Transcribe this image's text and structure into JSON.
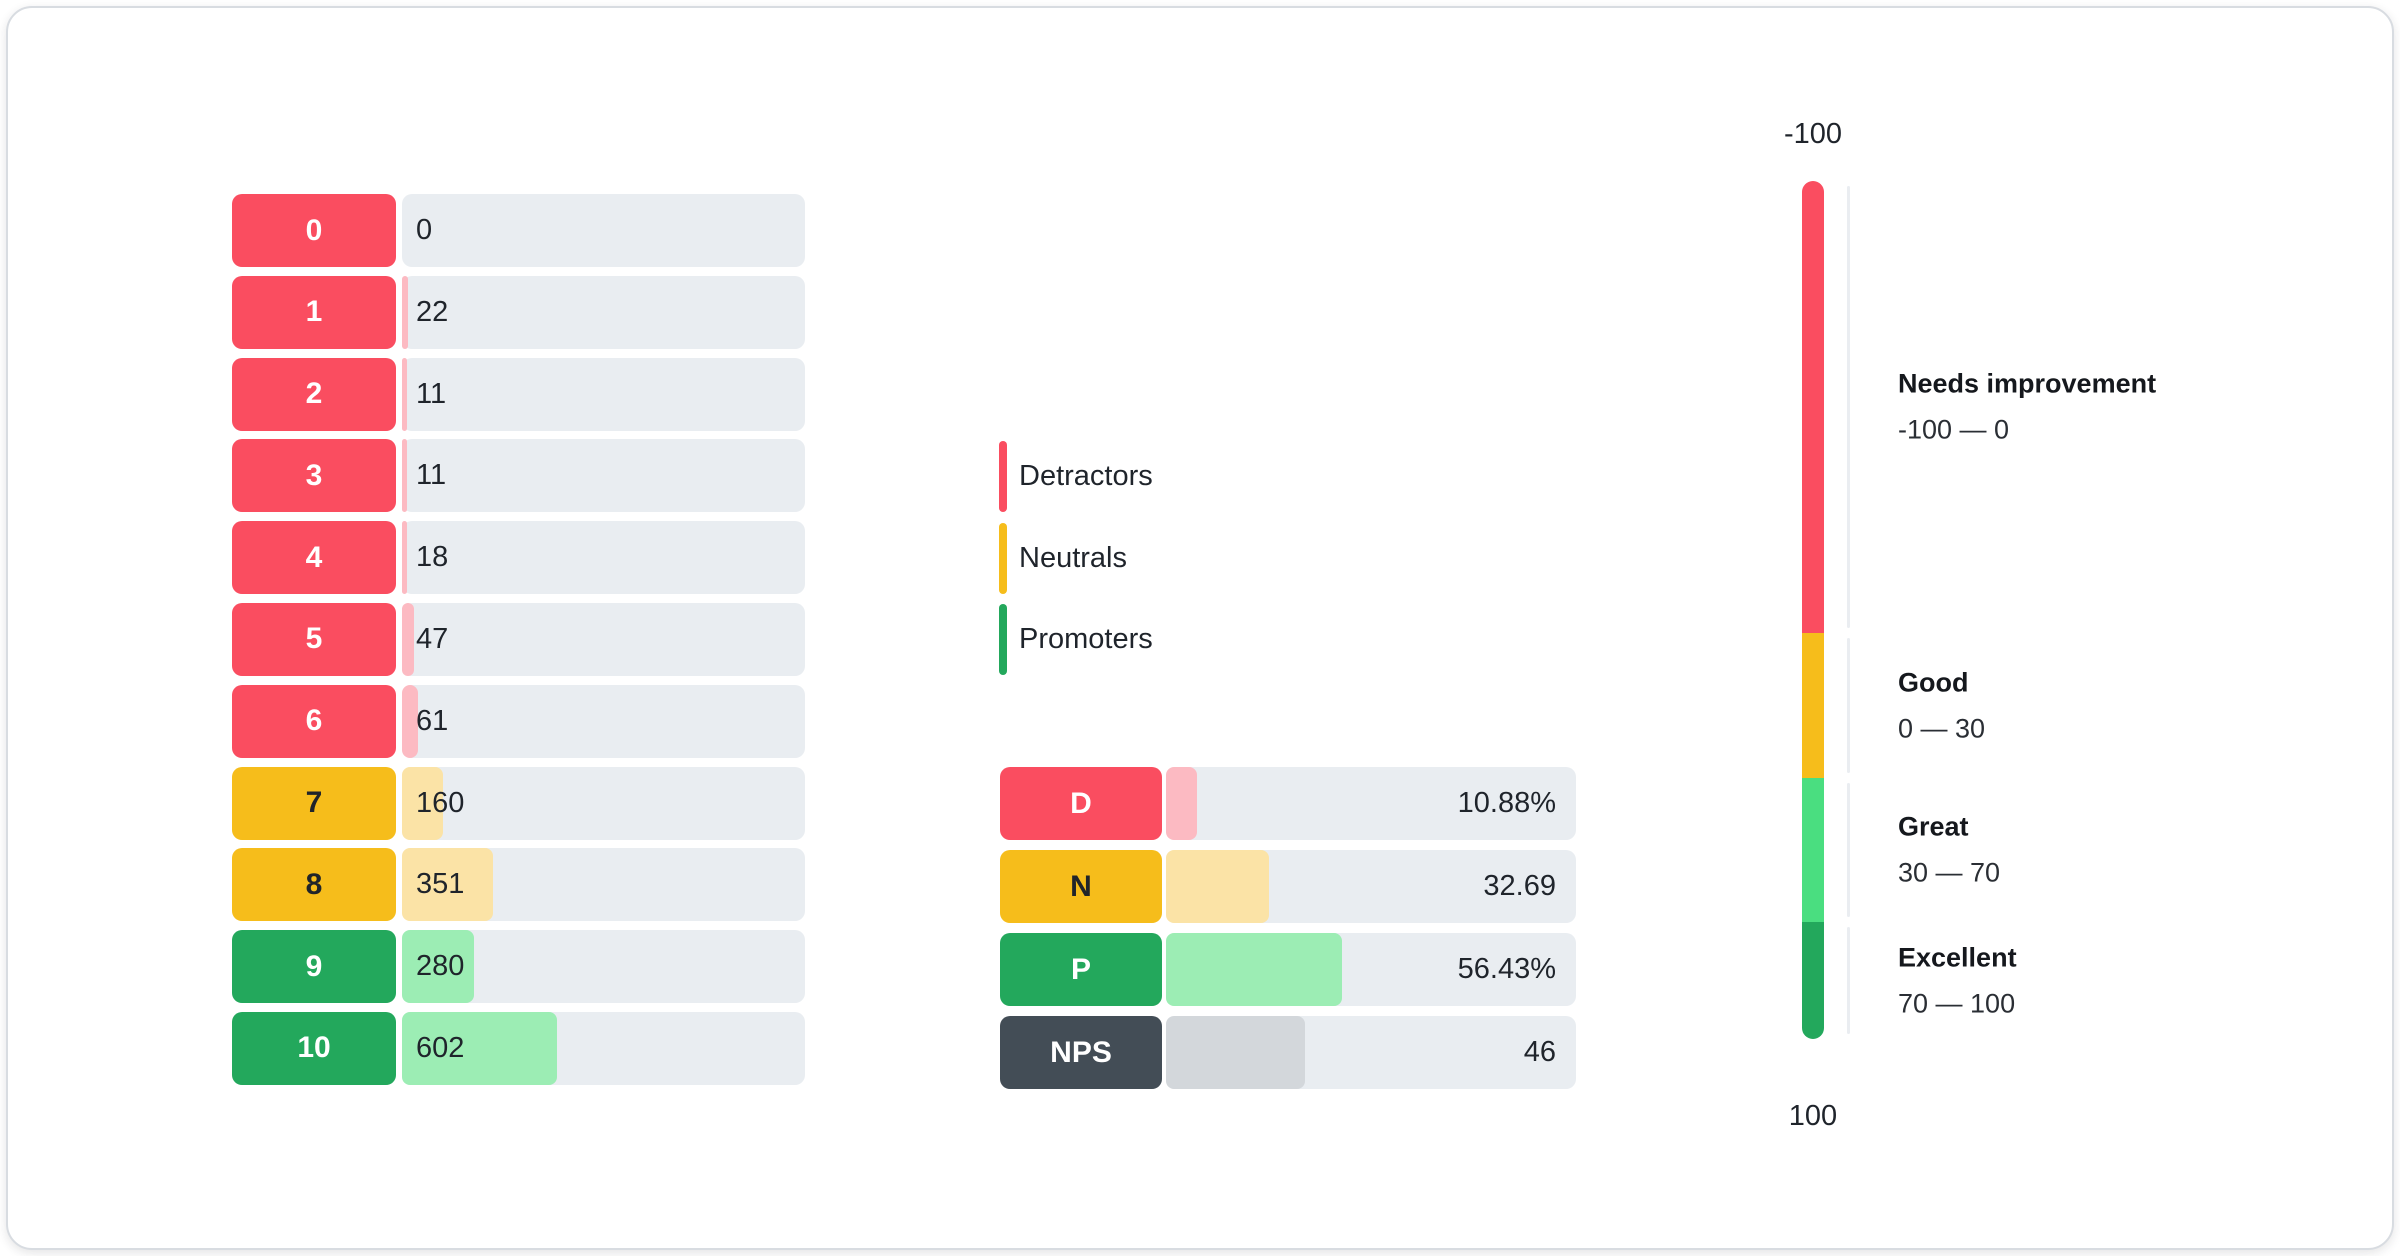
{
  "score_chart": {
    "rows": [
      {
        "label": "0",
        "value": "0",
        "group": "detractor",
        "fill_pct": 0
      },
      {
        "label": "1",
        "value": "22",
        "group": "detractor",
        "fill_pct": 1.41
      },
      {
        "label": "2",
        "value": "11",
        "group": "detractor",
        "fill_pct": 0.7
      },
      {
        "label": "3",
        "value": "11",
        "group": "detractor",
        "fill_pct": 0.7
      },
      {
        "label": "4",
        "value": "18",
        "group": "detractor",
        "fill_pct": 1.15
      },
      {
        "label": "5",
        "value": "47",
        "group": "detractor",
        "fill_pct": 3.01
      },
      {
        "label": "6",
        "value": "61",
        "group": "detractor",
        "fill_pct": 3.9
      },
      {
        "label": "7",
        "value": "160",
        "group": "neutral",
        "fill_pct": 10.24
      },
      {
        "label": "8",
        "value": "351",
        "group": "neutral",
        "fill_pct": 22.46
      },
      {
        "label": "9",
        "value": "280",
        "group": "promoter",
        "fill_pct": 17.91
      },
      {
        "label": "10",
        "value": "602",
        "group": "promoter",
        "fill_pct": 38.52
      }
    ]
  },
  "legend": {
    "items": [
      {
        "label": "Detractors",
        "group": "detractor"
      },
      {
        "label": "Neutrals",
        "group": "neutral"
      },
      {
        "label": "Promoters",
        "group": "promoter"
      }
    ]
  },
  "summary": {
    "rows": [
      {
        "label": "D",
        "value": "10.88%",
        "group": "detractor",
        "fill_pct": 7.5
      },
      {
        "label": "N",
        "value": "32.69",
        "group": "neutral",
        "fill_pct": 25
      },
      {
        "label": "P",
        "value": "56.43%",
        "group": "promoter",
        "fill_pct": 43
      },
      {
        "label": "NPS",
        "value": "46",
        "group": "nps",
        "fill_pct": 34
      }
    ]
  },
  "gauge": {
    "top_label": "-100",
    "bottom_label": "100",
    "zones": [
      {
        "title": "Needs improvement",
        "range": "-100 — 0",
        "group": "detractor",
        "height_pct": 52.7
      },
      {
        "title": "Good",
        "range": "0 — 30",
        "group": "neutral",
        "height_pct": 16.9
      },
      {
        "title": "Great",
        "range": "30 — 70",
        "group": "promoter_light",
        "height_pct": 16.8
      },
      {
        "title": "Excellent",
        "range": "70 — 100",
        "group": "promoter",
        "height_pct": 13.6
      }
    ]
  },
  "colors": {
    "groups": {
      "detractor": {
        "badge": "#FA4D60",
        "fill": "#FCBAC2",
        "text": "#FFFFFF"
      },
      "neutral": {
        "badge": "#F6BD1B",
        "fill": "#FBE3A6",
        "text": "#20242A"
      },
      "promoter": {
        "badge": "#23A85C",
        "fill": "#9CEDB4",
        "text": "#FFFFFF"
      },
      "promoter_light": {
        "badge": "#4ADE80",
        "fill": "#9CEDB4",
        "text": "#FFFFFF"
      },
      "nps": {
        "badge": "#434D56",
        "fill": "#D3D7DB",
        "text": "#FFFFFF"
      }
    },
    "track": "#E9EDF1",
    "separator": "#EAEDF1",
    "text": "#1F242B"
  },
  "chart_data": [
    {
      "type": "bar",
      "orientation": "horizontal",
      "categories": [
        "0",
        "1",
        "2",
        "3",
        "4",
        "5",
        "6",
        "7",
        "8",
        "9",
        "10"
      ],
      "values": [
        0,
        22,
        11,
        11,
        18,
        47,
        61,
        160,
        351,
        280,
        602
      ],
      "legend": [
        "Detractors",
        "Neutrals",
        "Promoters"
      ],
      "category_groups": [
        "detractor",
        "detractor",
        "detractor",
        "detractor",
        "detractor",
        "detractor",
        "detractor",
        "neutral",
        "neutral",
        "promoter",
        "promoter"
      ]
    },
    {
      "type": "bar",
      "orientation": "horizontal",
      "categories": [
        "D",
        "N",
        "P",
        "NPS"
      ],
      "values": [
        10.88,
        32.69,
        56.43,
        46
      ],
      "value_labels": [
        "10.88%",
        "32.69",
        "56.43%",
        "46"
      ]
    },
    {
      "type": "gauge",
      "axis_range": [
        -100,
        100
      ],
      "zones": [
        {
          "label": "Needs improvement",
          "from": -100,
          "to": 0
        },
        {
          "label": "Good",
          "from": 0,
          "to": 30
        },
        {
          "label": "Great",
          "from": 30,
          "to": 70
        },
        {
          "label": "Excellent",
          "from": 70,
          "to": 100
        }
      ]
    }
  ]
}
